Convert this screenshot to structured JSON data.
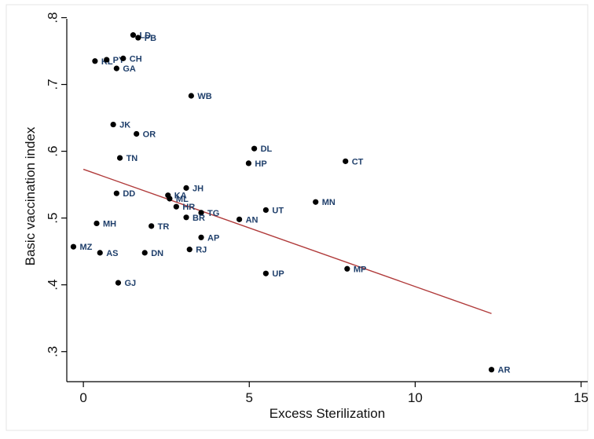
{
  "chart_data": {
    "type": "scatter",
    "xlabel": "Excess Sterilization",
    "ylabel": "Basic vaccination index",
    "xlim": [
      -0.5,
      15.2
    ],
    "ylim": [
      0.255,
      0.81
    ],
    "xticks": [
      0,
      5,
      10,
      15
    ],
    "xtick_labels": [
      "0",
      "5",
      "10",
      "15"
    ],
    "yticks": [
      0.3,
      0.4,
      0.5,
      0.6,
      0.7,
      0.8
    ],
    "ytick_labels": [
      ".3",
      ".4",
      ".5",
      ".6",
      ".7",
      ".8"
    ],
    "grid": false,
    "point_color": "#000000",
    "label_color": "#1f3f6b",
    "fit_line_color": "#b03a3a",
    "fit_line": {
      "x": [
        0,
        12.3
      ],
      "y": [
        0.573,
        0.357
      ]
    },
    "points": [
      {
        "label": "LD",
        "x": 1.5,
        "y": 0.774
      },
      {
        "label": "PB",
        "x": 1.65,
        "y": 0.77
      },
      {
        "label": "KL",
        "x": 0.35,
        "y": 0.735
      },
      {
        "label": "PY",
        "x": 0.7,
        "y": 0.737
      },
      {
        "label": "CH",
        "x": 1.2,
        "y": 0.739
      },
      {
        "label": "GA",
        "x": 1.0,
        "y": 0.724
      },
      {
        "label": "WB",
        "x": 3.25,
        "y": 0.683
      },
      {
        "label": "JK",
        "x": 0.9,
        "y": 0.64
      },
      {
        "label": "OR",
        "x": 1.6,
        "y": 0.626
      },
      {
        "label": "DL",
        "x": 5.15,
        "y": 0.604
      },
      {
        "label": "TN",
        "x": 1.1,
        "y": 0.59
      },
      {
        "label": "HP",
        "x": 4.98,
        "y": 0.582
      },
      {
        "label": "CT",
        "x": 7.9,
        "y": 0.585
      },
      {
        "label": "JH",
        "x": 3.1,
        "y": 0.545
      },
      {
        "label": "DD",
        "x": 1.0,
        "y": 0.537
      },
      {
        "label": "KA",
        "x": 2.55,
        "y": 0.534
      },
      {
        "label": "ML",
        "x": 2.6,
        "y": 0.529
      },
      {
        "label": "HR",
        "x": 2.8,
        "y": 0.517
      },
      {
        "label": "MN",
        "x": 7.0,
        "y": 0.524
      },
      {
        "label": "UT",
        "x": 5.5,
        "y": 0.512
      },
      {
        "label": "TG",
        "x": 3.55,
        "y": 0.508
      },
      {
        "label": "BR",
        "x": 3.1,
        "y": 0.501
      },
      {
        "label": "AN",
        "x": 4.7,
        "y": 0.498
      },
      {
        "label": "MH",
        "x": 0.4,
        "y": 0.492
      },
      {
        "label": "TR",
        "x": 2.05,
        "y": 0.488
      },
      {
        "label": "AP",
        "x": 3.55,
        "y": 0.471
      },
      {
        "label": "MZ",
        "x": -0.3,
        "y": 0.457
      },
      {
        "label": "RJ",
        "x": 3.2,
        "y": 0.453
      },
      {
        "label": "AS",
        "x": 0.5,
        "y": 0.448
      },
      {
        "label": "DN",
        "x": 1.85,
        "y": 0.448
      },
      {
        "label": "MP",
        "x": 7.95,
        "y": 0.424
      },
      {
        "label": "UP",
        "x": 5.5,
        "y": 0.417
      },
      {
        "label": "GJ",
        "x": 1.05,
        "y": 0.403
      },
      {
        "label": "AR",
        "x": 12.3,
        "y": 0.273
      }
    ]
  }
}
